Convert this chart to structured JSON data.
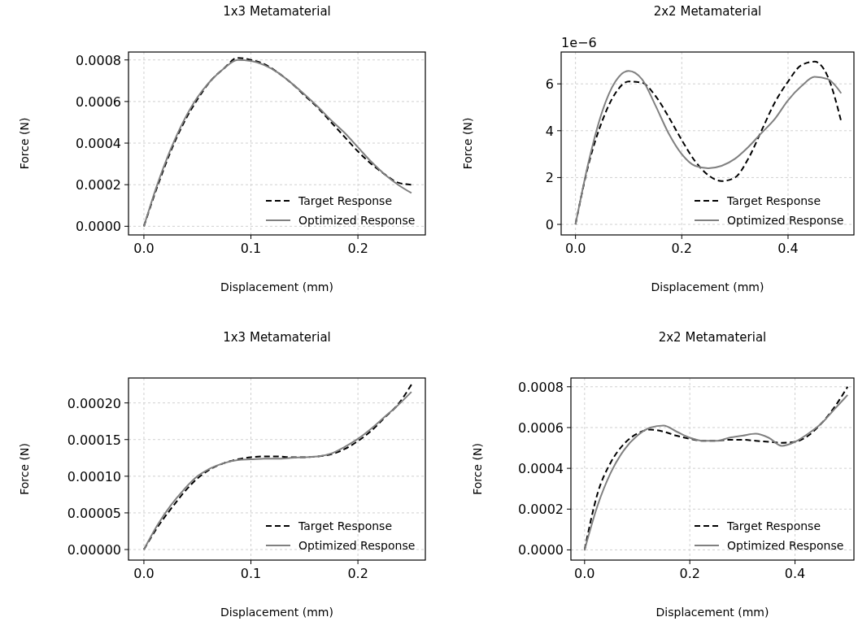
{
  "chart_data": [
    {
      "type": "line",
      "title": "1x3 Metamaterial",
      "xlabel": "Displacement (mm)",
      "ylabel": "Force (N)",
      "grid": true,
      "legend": "bottom right",
      "xlim": [
        -0.0144,
        0.263
      ],
      "ylim": [
        -4.16e-05,
        0.000838
      ],
      "xticks": [
        {
          "value": 0,
          "label": "0.0"
        },
        {
          "value": 0.1,
          "label": "0.1"
        },
        {
          "value": 0.2,
          "label": "0.2"
        }
      ],
      "yticks": [
        {
          "value": 0,
          "label": "0.0000"
        },
        {
          "value": 0.0002,
          "label": "0.0002"
        },
        {
          "value": 0.0004,
          "label": "0.0004"
        },
        {
          "value": 0.0006,
          "label": "0.0006"
        },
        {
          "value": 0.0008,
          "label": "0.0008"
        }
      ],
      "x": [
        0,
        0.0125,
        0.025,
        0.0375,
        0.05,
        0.0625,
        0.075,
        0.0875,
        0.1,
        0.1125,
        0.125,
        0.1375,
        0.15,
        0.1625,
        0.175,
        0.1875,
        0.2,
        0.2125,
        0.225,
        0.2375,
        0.25
      ],
      "series": [
        {
          "name": "Target Response",
          "color": "#000000",
          "line_style": "dashed",
          "values": [
            0,
            0.00019,
            0.00036,
            0.0005,
            0.00061,
            0.0007,
            0.00076,
            0.00081,
            0.0008,
            0.00078,
            0.00074,
            0.00069,
            0.00063,
            0.00057,
            0.0005,
            0.00043,
            0.00036,
            0.0003,
            0.00025,
            0.00021,
            0.0002
          ]
        },
        {
          "name": "Optimized Response",
          "color": "#808080",
          "line_style": "solid",
          "values": [
            0,
            0.0002,
            0.00037,
            0.00051,
            0.00062,
            0.0007,
            0.00076,
            0.0008,
            0.000795,
            0.000775,
            0.00074,
            0.00069,
            0.000635,
            0.000575,
            0.00051,
            0.00045,
            0.00038,
            0.00031,
            0.00025,
            0.0002,
            0.00016
          ]
        }
      ]
    },
    {
      "type": "line",
      "title": "2x2 Metamaterial",
      "xlabel": "Displacement (mm)",
      "ylabel": "Force (N)",
      "annotations": [
        "1e−6"
      ],
      "grid": true,
      "legend": "bottom right",
      "xlim": [
        -0.027,
        0.524
      ],
      "ylim": [
        -0.45,
        7.36
      ],
      "xticks": [
        {
          "value": 0,
          "label": "0.0"
        },
        {
          "value": 0.2,
          "label": "0.2"
        },
        {
          "value": 0.4,
          "label": "0.4"
        }
      ],
      "yticks": [
        0,
        2,
        4,
        6
      ],
      "x": [
        0,
        0.025,
        0.05,
        0.075,
        0.1,
        0.125,
        0.15,
        0.175,
        0.2,
        0.225,
        0.25,
        0.275,
        0.3,
        0.325,
        0.35,
        0.375,
        0.4,
        0.425,
        0.45,
        0.475,
        0.5
      ],
      "series": [
        {
          "name": "Target Response",
          "color": "#000000",
          "line_style": "dashed",
          "values": [
            0,
            2.6,
            4.4,
            5.6,
            6.1,
            6.05,
            5.5,
            4.6,
            3.6,
            2.7,
            2.1,
            1.85,
            2.0,
            2.8,
            4.0,
            5.2,
            6.1,
            6.8,
            6.95,
            6.3,
            4.4
          ]
        },
        {
          "name": "Optimized Response",
          "color": "#808080",
          "line_style": "solid",
          "values": [
            0,
            2.7,
            4.8,
            6.1,
            6.55,
            6.2,
            5.1,
            3.9,
            3.0,
            2.5,
            2.4,
            2.5,
            2.8,
            3.3,
            3.9,
            4.5,
            5.3,
            5.9,
            6.3,
            6.2,
            5.6
          ]
        }
      ]
    },
    {
      "type": "line",
      "title": "1x3 Metamaterial",
      "xlabel": "Displacement (mm)",
      "ylabel": "Force (N)",
      "grid": true,
      "legend": "bottom right",
      "xlim": [
        -0.0144,
        0.263
      ],
      "ylim": [
        -1.44e-05,
        0.000234
      ],
      "xticks": [
        {
          "value": 0,
          "label": "0.0"
        },
        {
          "value": 0.1,
          "label": "0.1"
        },
        {
          "value": 0.2,
          "label": "0.2"
        }
      ],
      "yticks": [
        {
          "value": 0,
          "label": "0.00000"
        },
        {
          "value": 5e-05,
          "label": "0.00005"
        },
        {
          "value": 0.0001,
          "label": "0.00010"
        },
        {
          "value": 0.00015,
          "label": "0.00015"
        },
        {
          "value": 0.0002,
          "label": "0.00020"
        }
      ],
      "x": [
        0,
        0.0125,
        0.025,
        0.0375,
        0.05,
        0.0625,
        0.075,
        0.0875,
        0.1,
        0.1125,
        0.125,
        0.1375,
        0.15,
        0.1625,
        0.175,
        0.1875,
        0.2,
        0.2125,
        0.225,
        0.2375,
        0.25
      ],
      "series": [
        {
          "name": "Target Response",
          "color": "#000000",
          "line_style": "dashed",
          "values": [
            0,
            3e-05,
            5.5e-05,
            7.8e-05,
            9.7e-05,
            0.00011,
            0.000118,
            0.000123,
            0.000126,
            0.000127,
            0.000127,
            0.000126,
            0.000126,
            0.000127,
            0.00013,
            0.000137,
            0.000148,
            0.000162,
            0.00018,
            0.000198,
            0.000225
          ]
        },
        {
          "name": "Optimized Response",
          "color": "#808080",
          "line_style": "solid",
          "values": [
            0,
            3.3e-05,
            6e-05,
            8.2e-05,
            0.0001,
            0.000111,
            0.000118,
            0.000122,
            0.000123,
            0.000124,
            0.000124,
            0.000125,
            0.000126,
            0.000127,
            0.000131,
            0.00014,
            0.000151,
            0.000165,
            0.000181,
            0.000197,
            0.000215
          ]
        }
      ]
    },
    {
      "type": "line",
      "title": "2x2 Metamaterial",
      "xlabel": "Displacement (mm)",
      "ylabel": "Force (N)",
      "grid": true,
      "legend": "bottom right",
      "xlim": [
        -0.026,
        0.512
      ],
      "ylim": [
        -5e-05,
        0.000843
      ],
      "xticks": [
        {
          "value": 0,
          "label": "0.0"
        },
        {
          "value": 0.2,
          "label": "0.2"
        },
        {
          "value": 0.4,
          "label": "0.4"
        }
      ],
      "yticks": [
        {
          "value": 0,
          "label": "0.0000"
        },
        {
          "value": 0.0002,
          "label": "0.0002"
        },
        {
          "value": 0.0004,
          "label": "0.0004"
        },
        {
          "value": 0.0006,
          "label": "0.0006"
        },
        {
          "value": 0.0008,
          "label": "0.0008"
        }
      ],
      "x": [
        0,
        0.025,
        0.05,
        0.075,
        0.1,
        0.125,
        0.15,
        0.175,
        0.2,
        0.225,
        0.25,
        0.275,
        0.3,
        0.325,
        0.35,
        0.375,
        0.4,
        0.425,
        0.45,
        0.475,
        0.5
      ],
      "series": [
        {
          "name": "Target Response",
          "color": "#000000",
          "line_style": "dashed",
          "values": [
            0,
            0.00028,
            0.00043,
            0.00052,
            0.00057,
            0.00059,
            0.00058,
            0.00056,
            0.000545,
            0.000535,
            0.000535,
            0.00054,
            0.00054,
            0.000535,
            0.00053,
            0.000525,
            0.00053,
            0.00056,
            0.00062,
            0.0007,
            0.0008
          ]
        },
        {
          "name": "Optimized Response",
          "color": "#808080",
          "line_style": "solid",
          "values": [
            0,
            0.00022,
            0.00038,
            0.00049,
            0.00056,
            0.0006,
            0.00061,
            0.00058,
            0.00055,
            0.000535,
            0.000535,
            0.00055,
            0.00056,
            0.00057,
            0.00055,
            0.00051,
            0.00053,
            0.00057,
            0.00062,
            0.00069,
            0.00076
          ]
        }
      ]
    }
  ]
}
